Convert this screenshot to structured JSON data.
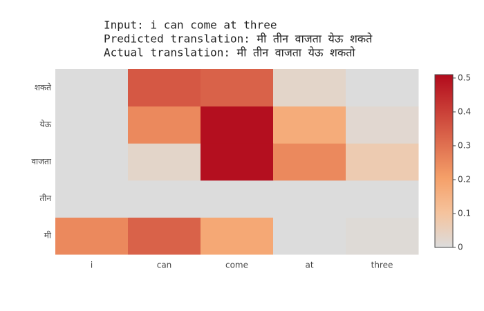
{
  "chart_data": {
    "type": "heatmap",
    "title_lines": [
      "Input: i can come at three",
      "Predicted translation: मी तीन वाजता येऊ शकते",
      "Actual translation: मी तीन वाजता येऊ शकतो"
    ],
    "x_categories": [
      "i",
      "can",
      "come",
      "at",
      "three"
    ],
    "y_categories": [
      "मी",
      "तीन",
      "वाजता",
      "येऊ",
      "शकते"
    ],
    "z": [
      [
        0.25,
        0.33,
        0.18,
        0.0,
        0.01
      ],
      [
        0.0,
        0.0,
        0.0,
        0.0,
        0.0
      ],
      [
        0.0,
        0.03,
        0.5,
        0.25,
        0.07
      ],
      [
        0.0,
        0.25,
        0.5,
        0.17,
        0.02
      ],
      [
        0.0,
        0.35,
        0.33,
        0.03,
        0.0
      ]
    ],
    "colorscale": [
      [
        0,
        "rgb(220,220,220)"
      ],
      [
        0.2,
        "rgb(245,195,157)"
      ],
      [
        0.4,
        "rgb(245,160,105)"
      ],
      [
        1,
        "rgb(178,10,28)"
      ]
    ],
    "zlim": [
      0,
      0.51
    ],
    "colorbar_ticks": [
      0,
      0.1,
      0.2,
      0.3,
      0.4,
      0.5
    ]
  }
}
